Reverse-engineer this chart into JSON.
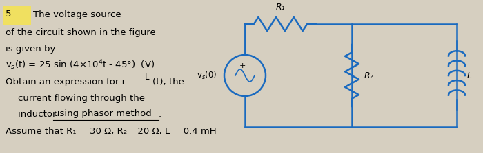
{
  "bg_color": "#d6cfc0",
  "text_color": "#000000",
  "circuit_color": "#1a6abf",
  "fig_width": 7.0,
  "fig_height": 2.23,
  "number": "5.",
  "highlight_color": "#f0e060",
  "line1": "The voltage source",
  "line2": "of the circuit shown in the figure",
  "line3": "is given by",
  "eq_line": "vₛ(t) = 25 sin (4×10⁴t - 45°)  (V)",
  "vs_label": "vₛ(0)",
  "line4": "Obtain an expression for i",
  "line4b": "L",
  "line4c": "(t), the",
  "line5": "current flowing through the",
  "line6": "inductor ",
  "line6b": "using phasor method",
  "line6c": ".",
  "line7": "Assume that R₁ = 30 Ω, R₂= 20 Ω, L = 0.4 mH",
  "R1_label": "R₁",
  "R2_label": "R₂",
  "L_label": "L"
}
